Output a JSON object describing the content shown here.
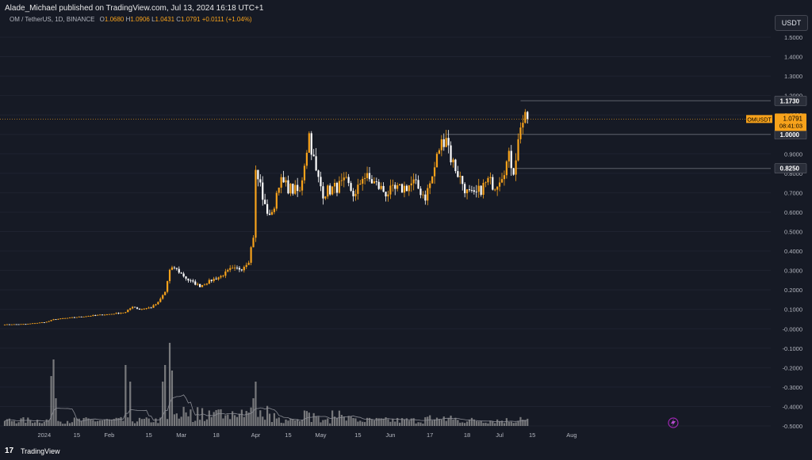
{
  "header": {
    "published": "Alade_Michael published on TradingView.com, Jul 13, 2024 16:18 UTC+1",
    "symbol_line": "OM / TetherUS, 1D, BINANCE",
    "ohlc": [
      {
        "key": "O",
        "value": "1.0680"
      },
      {
        "key": "H",
        "value": "1.0906"
      },
      {
        "key": "L",
        "value": "1.0431"
      },
      {
        "key": "C",
        "value": "1.0791"
      },
      {
        "key": "",
        "value": "+0.0111 (+1.04%)"
      }
    ]
  },
  "currency_button": "USDT",
  "footer": {
    "logo": "17",
    "brand": "TradingView"
  },
  "colors": {
    "background": "#161a25",
    "up": "#f7a21b",
    "down": "#ffffff",
    "volume": "#9a9a9a",
    "axis_text": "#b2b5be",
    "level_line": "#5d606b",
    "price_label_bg": "#f7a21b"
  },
  "chart_data": {
    "type": "candlestick",
    "symbol": "OMUSDT",
    "yaxis_ticks": [
      "1.5000",
      "1.4000",
      "1.3000",
      "1.2000",
      "1.1000",
      "1.0000",
      "0.9000",
      "0.8000",
      "0.7000",
      "0.6000",
      "0.5000",
      "0.4000",
      "0.3000",
      "0.2000",
      "0.1000",
      "-0.0000",
      "-0.1000",
      "-0.2000",
      "-0.3000",
      "-0.4000",
      "-0.5000"
    ],
    "ylim": [
      -0.52,
      1.58
    ],
    "xaxis_ticks": [
      "18",
      "2024",
      "15",
      "Feb",
      "15",
      "Mar",
      "18",
      "Apr",
      "15",
      "May",
      "15",
      "Jun",
      "17",
      "Jul",
      "15",
      "Aug"
    ],
    "last_price": {
      "label": "OMUSDT",
      "price": "1.0791",
      "countdown": "08:41:03"
    },
    "levels": [
      {
        "price": 1.173,
        "label": "1.1730",
        "from": "Jul 10"
      },
      {
        "price": 1.0,
        "label": "1.0000",
        "from": "Jun 8"
      },
      {
        "price": 0.825,
        "label": "0.8250",
        "from": "Jul 8"
      }
    ],
    "anchors": [
      {
        "date": "Dec 1",
        "close": 0.022
      },
      {
        "date": "Dec 10",
        "close": 0.024
      },
      {
        "date": "Dec 19",
        "close": 0.035
      },
      {
        "date": "Dec 22",
        "close": 0.048
      },
      {
        "date": "Jan 1",
        "close": 0.06
      },
      {
        "date": "Jan 10",
        "close": 0.07
      },
      {
        "date": "Jan 15",
        "close": 0.075
      },
      {
        "date": "Jan 22",
        "close": 0.085
      },
      {
        "date": "Jan 25",
        "close": 0.115
      },
      {
        "date": "Jan 28",
        "close": 0.1
      },
      {
        "date": "Feb 2",
        "close": 0.11
      },
      {
        "date": "Feb 5",
        "close": 0.135
      },
      {
        "date": "Feb 8",
        "close": 0.19
      },
      {
        "date": "Feb 10",
        "close": 0.3
      },
      {
        "date": "Feb 12",
        "close": 0.315
      },
      {
        "date": "Feb 18",
        "close": 0.25
      },
      {
        "date": "Feb 23",
        "close": 0.22
      },
      {
        "date": "Feb 28",
        "close": 0.25
      },
      {
        "date": "Mar 3",
        "close": 0.27
      },
      {
        "date": "Mar 7",
        "close": 0.305
      },
      {
        "date": "Mar 12",
        "close": 0.31
      },
      {
        "date": "Mar 15",
        "close": 0.35
      },
      {
        "date": "Mar 17",
        "close": 0.48
      },
      {
        "date": "Mar 18",
        "close": 0.8
      },
      {
        "date": "Mar 20",
        "close": 0.74
      },
      {
        "date": "Mar 22",
        "close": 0.62
      },
      {
        "date": "Mar 25",
        "close": 0.58
      },
      {
        "date": "Mar 28",
        "close": 0.76
      },
      {
        "date": "Apr 2",
        "close": 0.72
      },
      {
        "date": "Apr 6",
        "close": 0.7
      },
      {
        "date": "Apr 8",
        "close": 0.86
      },
      {
        "date": "Apr 10",
        "close": 1.0
      },
      {
        "date": "Apr 13",
        "close": 0.8
      },
      {
        "date": "Apr 16",
        "close": 0.7
      },
      {
        "date": "Apr 20",
        "close": 0.72
      },
      {
        "date": "Apr 26",
        "close": 0.75
      },
      {
        "date": "Apr 30",
        "close": 0.68
      },
      {
        "date": "May 3",
        "close": 0.79
      },
      {
        "date": "May 8",
        "close": 0.75
      },
      {
        "date": "May 13",
        "close": 0.7
      },
      {
        "date": "May 20",
        "close": 0.72
      },
      {
        "date": "May 25",
        "close": 0.75
      },
      {
        "date": "May 30",
        "close": 0.68
      },
      {
        "date": "Jun 2",
        "close": 0.78
      },
      {
        "date": "Jun 5",
        "close": 0.93
      },
      {
        "date": "Jun 8",
        "close": 1.0
      },
      {
        "date": "Jun 10",
        "close": 0.88
      },
      {
        "date": "Jun 13",
        "close": 0.8
      },
      {
        "date": "Jun 17",
        "close": 0.7
      },
      {
        "date": "Jun 20",
        "close": 0.68
      },
      {
        "date": "Jun 23",
        "close": 0.72
      },
      {
        "date": "Jun 26",
        "close": 0.76
      },
      {
        "date": "Jun 29",
        "close": 0.74
      },
      {
        "date": "Jul 2",
        "close": 0.8
      },
      {
        "date": "Jul 5",
        "close": 0.88
      },
      {
        "date": "Jul 7",
        "close": 0.82
      },
      {
        "date": "Jul 9",
        "close": 0.96
      },
      {
        "date": "Jul 10",
        "close": 1.06
      },
      {
        "date": "Jul 12",
        "close": 1.068
      },
      {
        "date": "Jul 13",
        "close": 1.0791
      }
    ],
    "volume_spikes": [
      {
        "date": "Dec 21",
        "value": 0.45
      },
      {
        "date": "Dec 22",
        "value": 0.6
      },
      {
        "date": "Dec 23",
        "value": 0.25
      },
      {
        "date": "Jan 22",
        "value": 0.55
      },
      {
        "date": "Jan 24",
        "value": 0.4
      },
      {
        "date": "Feb 7",
        "value": 0.4
      },
      {
        "date": "Feb 8",
        "value": 0.55
      },
      {
        "date": "Feb 10",
        "value": 0.75
      },
      {
        "date": "Feb 11",
        "value": 0.5
      },
      {
        "date": "Mar 17",
        "value": 0.25
      },
      {
        "date": "Mar 18",
        "value": 0.4
      },
      {
        "date": "Jul 10",
        "value": 0.08
      }
    ]
  }
}
